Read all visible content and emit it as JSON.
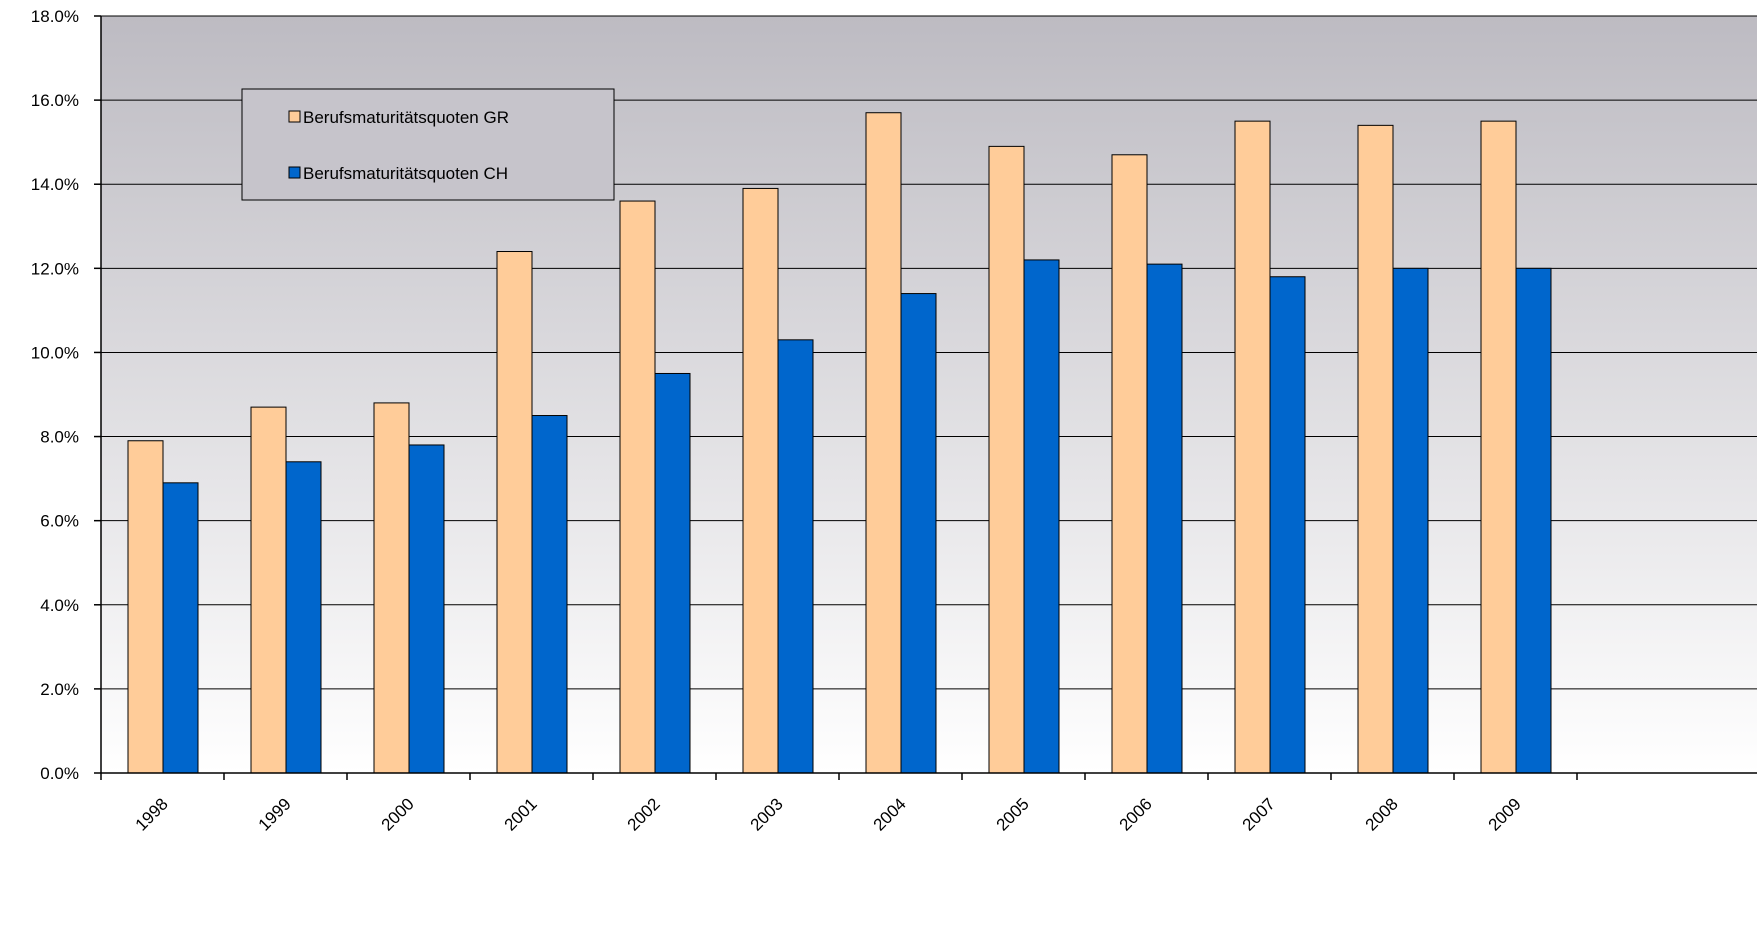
{
  "chart_data": {
    "type": "bar",
    "title": "",
    "xlabel": "",
    "ylabel": "",
    "categories": [
      "1998",
      "1999",
      "2000",
      "2001",
      "2002",
      "2003",
      "2004",
      "2005",
      "2006",
      "2007",
      "2008",
      "2009"
    ],
    "series": [
      {
        "name": "Berufsmaturitätsquoten GR",
        "color": "#FFCC99",
        "values": [
          7.9,
          8.7,
          8.8,
          12.4,
          13.6,
          13.9,
          15.7,
          14.9,
          14.7,
          15.5,
          15.4,
          15.5
        ]
      },
      {
        "name": "Berufsmaturitätsquoten CH",
        "color": "#0066CC",
        "values": [
          6.9,
          7.4,
          7.8,
          8.5,
          9.5,
          10.3,
          11.4,
          12.2,
          12.1,
          11.8,
          12.0,
          12.0
        ]
      }
    ],
    "ylim": [
      0,
      18
    ],
    "yticks": [
      0,
      2,
      4,
      6,
      8,
      10,
      12,
      14,
      16,
      18
    ],
    "ytick_labels": [
      "0.0%",
      "2.0%",
      "4.0%",
      "6.0%",
      "8.0%",
      "10.0%",
      "12.0%",
      "14.0%",
      "16.0%",
      "18.0%"
    ],
    "grid": true,
    "legend_position": "top-left",
    "plot_background": {
      "top": "#BDBBC2",
      "bottom": "#FFFFFF"
    }
  }
}
